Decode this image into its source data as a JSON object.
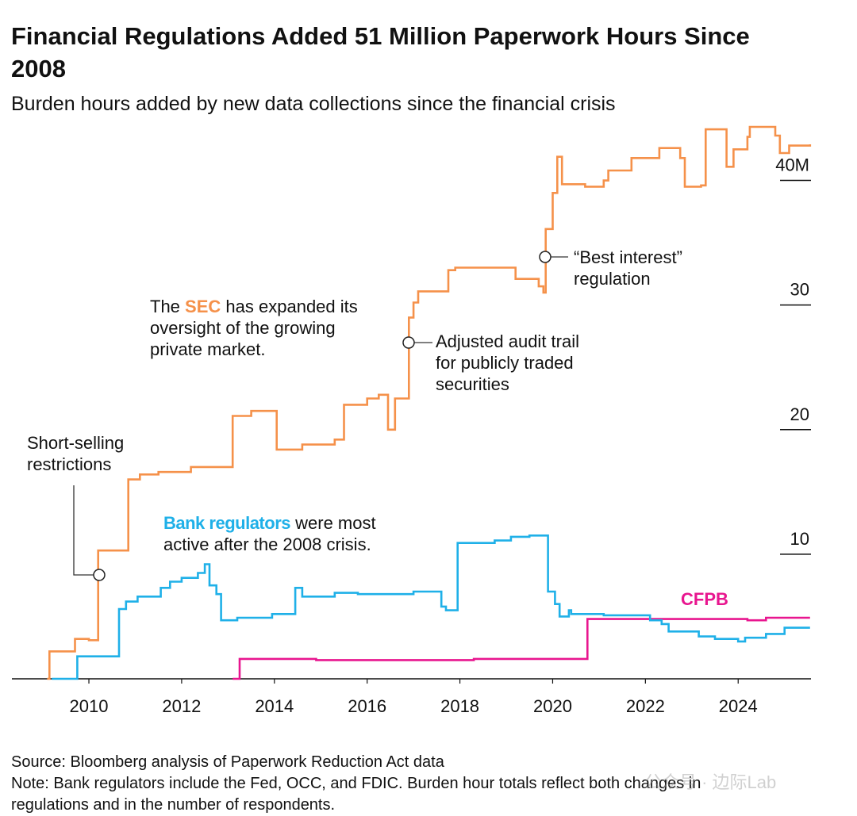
{
  "chart_data": {
    "type": "line",
    "step": true,
    "title_lines": [
      "Financial Regulations Added 51 Million Paperwork Hours Since",
      "2008"
    ],
    "subtitle": "Burden hours added by new data collections since the financial crisis",
    "xlim": [
      2008.34,
      2025.57
    ],
    "xticks": [
      2010,
      2012,
      2014,
      2016,
      2018,
      2020,
      2022,
      2024
    ],
    "ylim": [
      0,
      45
    ],
    "yticks": [
      10,
      20,
      30,
      {
        "value": 40,
        "label": "40M"
      }
    ],
    "series": [
      {
        "name": "SEC",
        "color": "#f5914a",
        "x": [
          2009.1,
          2009.15,
          2009.7,
          2010.0,
          2010.2,
          2010.85,
          2011.1,
          2011.5,
          2012.2,
          2013.1,
          2013.5,
          2014.05,
          2014.6,
          2015.3,
          2015.5,
          2016.0,
          2016.25,
          2016.45,
          2016.6,
          2016.9,
          2017.0,
          2017.1,
          2017.75,
          2017.9,
          2018.85,
          2019.2,
          2019.7,
          2019.8,
          2019.85,
          2020.0,
          2020.1,
          2020.2,
          2020.7,
          2021.1,
          2021.2,
          2021.7,
          2022.3,
          2022.75,
          2022.85,
          2023.2,
          2023.3,
          2023.75,
          2023.9,
          2024.2,
          2024.25,
          2024.8,
          2024.9,
          2025.1,
          2025.55
        ],
        "values": [
          0,
          2.2,
          3.2,
          3.1,
          10.3,
          16.0,
          16.4,
          16.6,
          17.0,
          21.1,
          21.5,
          18.4,
          18.8,
          19.2,
          22.0,
          22.5,
          22.8,
          20.0,
          22.5,
          29.0,
          30.2,
          31.1,
          32.8,
          33.0,
          33.0,
          32.1,
          31.5,
          31.0,
          36.1,
          39.0,
          41.9,
          39.7,
          39.5,
          40.0,
          40.8,
          41.8,
          42.6,
          41.8,
          39.5,
          39.6,
          44.1,
          41.1,
          42.5,
          43.5,
          44.3,
          43.6,
          42.2,
          42.8,
          42.9
        ]
      },
      {
        "name": "Bank regulators",
        "color": "#1fb0e8",
        "x": [
          2009.2,
          2009.75,
          2010.65,
          2010.8,
          2011.05,
          2011.55,
          2011.75,
          2012.0,
          2012.35,
          2012.5,
          2012.6,
          2012.75,
          2012.85,
          2013.2,
          2013.95,
          2014.45,
          2014.6,
          2015.3,
          2015.8,
          2017.0,
          2017.6,
          2017.7,
          2017.95,
          2018.75,
          2019.1,
          2019.5,
          2019.9,
          2020.05,
          2020.15,
          2020.35,
          2020.4,
          2021.1,
          2022.1,
          2022.35,
          2022.5,
          2023.15,
          2023.5,
          2024.0,
          2024.15,
          2024.6,
          2025.0,
          2025.55
        ],
        "values": [
          0,
          1.8,
          5.6,
          6.2,
          6.6,
          7.3,
          7.8,
          8.1,
          8.5,
          9.2,
          7.5,
          6.8,
          4.7,
          4.9,
          5.2,
          7.3,
          6.6,
          6.9,
          6.8,
          7.0,
          5.8,
          5.5,
          10.9,
          11.1,
          11.4,
          11.5,
          7.0,
          6.0,
          5.0,
          5.5,
          5.2,
          5.1,
          4.7,
          4.4,
          3.8,
          3.4,
          3.2,
          3.0,
          3.3,
          3.6,
          4.1,
          4.1
        ]
      },
      {
        "name": "CFPB",
        "color": "#e8168f",
        "x": [
          2013.1,
          2013.25,
          2014.9,
          2018.3,
          2020.75,
          2024.2,
          2024.6,
          2025.55
        ],
        "values": [
          0,
          1.6,
          1.5,
          1.6,
          4.8,
          4.7,
          4.9,
          4.9
        ]
      }
    ],
    "annotations": {
      "short_selling": [
        "Short-selling",
        "restrictions"
      ],
      "sec_note": {
        "before": "The",
        "key": "SEC",
        "after": "has expanded its",
        "lines": [
          "oversight of the growing",
          "private market."
        ]
      },
      "audit_trail": [
        "Adjusted audit trail",
        "for publicly traded",
        "securities"
      ],
      "best_interest": [
        "“Best interest”",
        "regulation"
      ],
      "bank_note": {
        "key": "Bank regulators",
        "after": "were most",
        "lines": [
          "active after the 2008 crisis."
        ]
      },
      "cfpb_label": "CFPB"
    },
    "source": "Source: Bloomberg analysis of Paperwork Reduction Act data",
    "note_lines": [
      "Note: Bank regulators include the Fed, OCC, and FDIC. Burden hour totals reflect both changes in",
      "regulations and in the number of respondents."
    ],
    "watermark": "公众号 · 边际Lab"
  }
}
